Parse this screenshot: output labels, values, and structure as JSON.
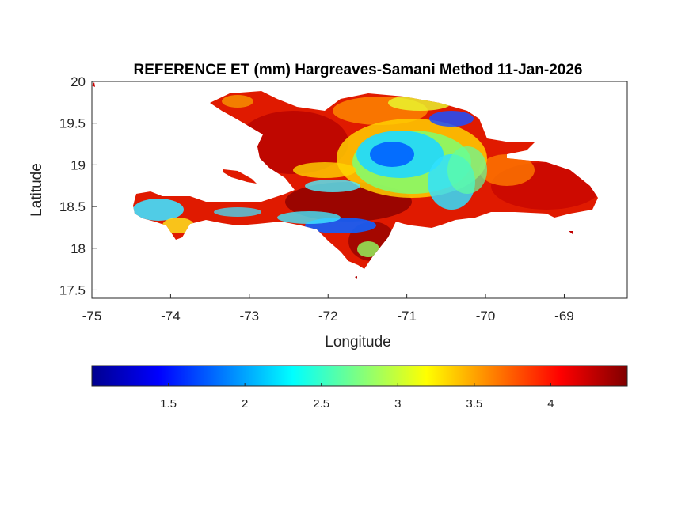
{
  "map": {
    "title": "REFERENCE ET (mm) Hargreaves-Samani Method  11-Jan-2026",
    "xlabel": "Longitude",
    "ylabel": "Latitude",
    "xlim": [
      -75,
      -68.2
    ],
    "ylim": [
      17.4,
      20
    ],
    "x_ticks": [
      -75,
      -74,
      -73,
      -72,
      -71,
      -70,
      -69
    ],
    "y_ticks": [
      20,
      19.5,
      19,
      18.5,
      18,
      17.5
    ],
    "x_tick_labels": [
      "-75",
      "-74",
      "-73",
      "-72",
      "-71",
      "-70",
      "-69"
    ],
    "y_tick_labels": [
      "20",
      "19.5",
      "19",
      "18.5",
      "18",
      "17.5"
    ],
    "region": "Hispaniola (Haiti and Dominican Republic)",
    "colormap": "jet"
  },
  "colorbar": {
    "range": [
      1.0,
      4.5
    ],
    "ticks": [
      1.5,
      2,
      2.5,
      3,
      3.5,
      4
    ],
    "tick_labels": [
      "1.5",
      "2",
      "2.5",
      "3",
      "3.5",
      "4"
    ],
    "colors": [
      "#00008f",
      "#0000ff",
      "#00ffff",
      "#ffff00",
      "#ff0000",
      "#800000"
    ]
  }
}
